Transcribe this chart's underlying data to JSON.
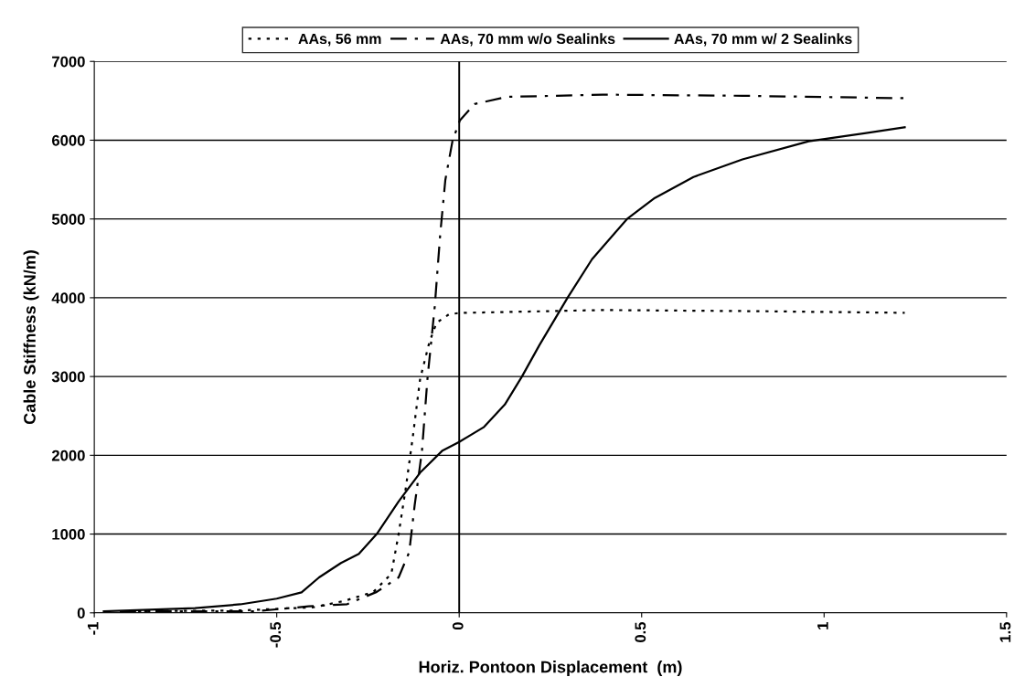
{
  "chart_data": {
    "type": "line",
    "xlabel": "Horiz. Pontoon Displacement  (m)",
    "ylabel": "Cable Stiffness (kN/m)",
    "xlim": [
      -1,
      1.5
    ],
    "ylim": [
      0,
      7000
    ],
    "xticks": [
      {
        "value": -1,
        "label": "-1"
      },
      {
        "value": -0.5,
        "label": "-0.5"
      },
      0,
      0.5,
      1,
      1.5
    ],
    "yticks": [
      0,
      1000,
      2000,
      3000,
      4000,
      5000,
      6000,
      7000
    ],
    "grid": "y",
    "legend": "top",
    "ref_lines": [
      {
        "axis": "x",
        "value": 0,
        "color": "#000000"
      }
    ],
    "series": [
      {
        "name": "AAs, 56 mm",
        "color": "#000000",
        "line_style": "dotted",
        "x": [
          -0.93,
          -0.6,
          -0.4,
          -0.315,
          -0.235,
          -0.186,
          -0.166,
          -0.146,
          -0.127,
          -0.107,
          -0.082,
          -0.062,
          -0.028,
          0,
          0.393,
          0.8,
          1.221
        ],
        "values": [
          20,
          30,
          70,
          151,
          266,
          495,
          1000,
          1596,
          2239,
          2972,
          3431,
          3683,
          3789,
          3807,
          3844,
          3830,
          3809
        ]
      },
      {
        "name": "AAs, 70 mm w/o Sealinks",
        "color": "#000000",
        "line_style": "dashdot",
        "x": [
          -0.93,
          -0.557,
          -0.413,
          -0.307,
          -0.226,
          -0.166,
          -0.137,
          -0.122,
          -0.102,
          -0.087,
          -0.067,
          -0.052,
          -0.038,
          -0.018,
          0.002,
          0.042,
          0.131,
          0.393,
          0.776,
          1.221
        ],
        "values": [
          20,
          20,
          83,
          110,
          266,
          450,
          770,
          1367,
          2055,
          2972,
          3890,
          4807,
          5495,
          6000,
          6252,
          6459,
          6550,
          6578,
          6564,
          6533
        ]
      },
      {
        "name": "AAs, 70 mm w/ 2 Sealinks",
        "color": "#000000",
        "line_style": "solid",
        "x": [
          -0.974,
          -0.724,
          -0.6,
          -0.5,
          -0.432,
          -0.384,
          -0.324,
          -0.275,
          -0.226,
          -0.166,
          -0.107,
          -0.047,
          0,
          0.067,
          0.125,
          0.172,
          0.22,
          0.297,
          0.364,
          0.46,
          0.536,
          0.642,
          0.776,
          0.958,
          1.111,
          1.221
        ],
        "values": [
          20,
          60,
          108,
          180,
          260,
          450,
          633,
          748,
          1000,
          1413,
          1780,
          2055,
          2170,
          2356,
          2644,
          3000,
          3400,
          4000,
          4489,
          5000,
          5267,
          5533,
          5756,
          5987,
          6089,
          6164
        ]
      }
    ]
  }
}
